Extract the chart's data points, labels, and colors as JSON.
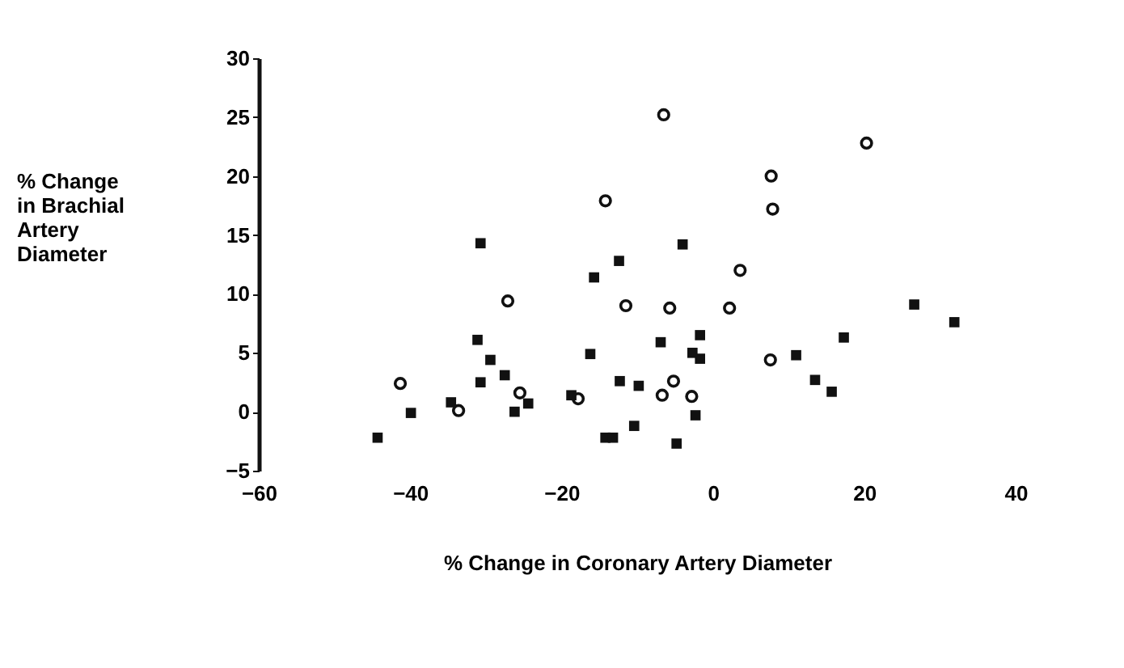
{
  "chart_data": {
    "type": "scatter",
    "xlabel": "% Change in Coronary Artery Diameter",
    "ylabel": "% Change\nin Brachial\nArtery\nDiameter",
    "xlim": [
      -60,
      40
    ],
    "xticks": [
      -60,
      -40,
      -20,
      0,
      20,
      40
    ],
    "ylim": [
      -5,
      30
    ],
    "yticks": [
      -5,
      0,
      5,
      10,
      15,
      20,
      25,
      30
    ],
    "grid": false,
    "series": [
      {
        "color": "#111111",
        "marker": "square",
        "x": [
          -44.3,
          -39.9,
          -34.6,
          -30.7,
          -31.1,
          -29.4,
          -30.7,
          -27.5,
          -26.2,
          -24.4,
          -18.7,
          -16.2,
          -15.7,
          -12.4,
          -12.3,
          -9.8,
          -10.4,
          -14.2,
          -13.2,
          -4.0,
          -6.9,
          -1.7,
          -2.7,
          -1.7,
          -4.8,
          -2.3,
          11.0,
          13.5,
          15.7,
          17.3,
          26.6,
          31.9
        ],
        "values": [
          -2.2,
          -0.1,
          0.8,
          14.3,
          6.1,
          4.4,
          2.5,
          3.1,
          0,
          0.7,
          1.4,
          4.9,
          11.4,
          12.8,
          2.6,
          2.2,
          -1.2,
          -2.2,
          -2.2,
          14.2,
          5.9,
          6.5,
          5.0,
          4.5,
          -2.7,
          -0.3,
          4.8,
          2.7,
          1.7,
          6.3,
          9.1,
          7.6
        ]
      },
      {
        "color": "#111111",
        "marker": "circle",
        "x": [
          -41.3,
          -33.6,
          -27.1,
          -25.5,
          -17.8,
          -14.2,
          -11.5,
          -6.5,
          20.3,
          7.7,
          7.9,
          3.6,
          -5.7,
          2.2,
          7.6,
          -5.2,
          -6.7,
          -2.8
        ],
        "values": [
          2.4,
          0.1,
          9.4,
          1.6,
          1.1,
          17.9,
          9.0,
          25.2,
          22.8,
          20.0,
          17.2,
          12.0,
          8.8,
          8.8,
          4.4,
          2.6,
          1.4,
          1.3
        ]
      }
    ]
  }
}
